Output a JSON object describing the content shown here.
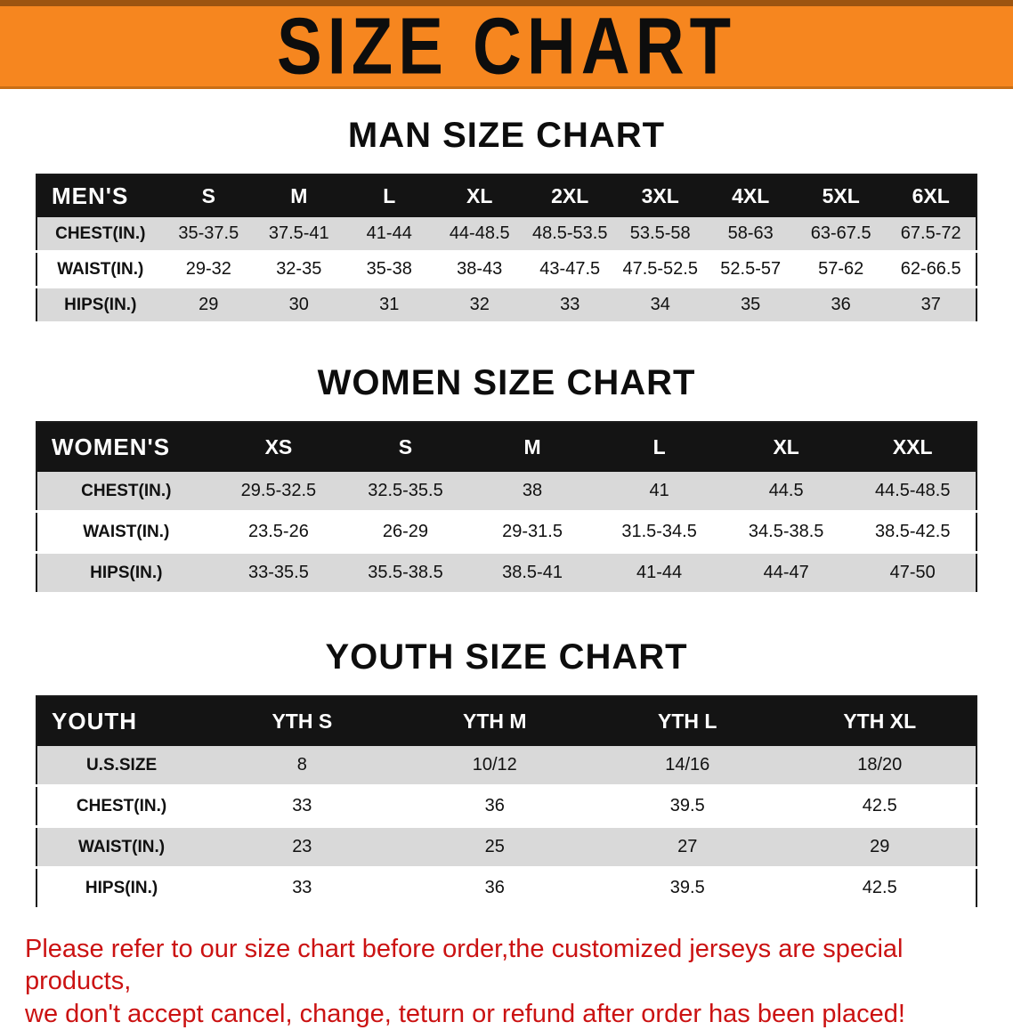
{
  "banner": {
    "title": "SIZE CHART"
  },
  "colors": {
    "banner_bg": "#F6861F",
    "banner_edge": "#9c5410",
    "header_bg": "#141414",
    "stripe": "#d9d9d9",
    "footer_text": "#cb1212"
  },
  "sections": [
    {
      "heading": "MAN SIZE CHART",
      "table": {
        "label": "MEN'S",
        "columns": [
          "S",
          "M",
          "L",
          "XL",
          "2XL",
          "3XL",
          "4XL",
          "5XL",
          "6XL"
        ],
        "rows": [
          {
            "label": "CHEST(IN.)",
            "values": [
              "35-37.5",
              "37.5-41",
              "41-44",
              "44-48.5",
              "48.5-53.5",
              "53.5-58",
              "58-63",
              "63-67.5",
              "67.5-72"
            ]
          },
          {
            "label": "WAIST(IN.)",
            "values": [
              "29-32",
              "32-35",
              "35-38",
              "38-43",
              "43-47.5",
              "47.5-52.5",
              "52.5-57",
              "57-62",
              "62-66.5"
            ]
          },
          {
            "label": "HIPS(IN.)",
            "values": [
              "29",
              "30",
              "31",
              "32",
              "33",
              "34",
              "35",
              "36",
              "37"
            ]
          }
        ]
      }
    },
    {
      "heading": "WOMEN SIZE CHART",
      "table": {
        "label": "WOMEN'S",
        "columns": [
          "XS",
          "S",
          "M",
          "L",
          "XL",
          "XXL"
        ],
        "rows": [
          {
            "label": "CHEST(IN.)",
            "values": [
              "29.5-32.5",
              "32.5-35.5",
              "38",
              "41",
              "44.5",
              "44.5-48.5"
            ]
          },
          {
            "label": "WAIST(IN.)",
            "values": [
              "23.5-26",
              "26-29",
              "29-31.5",
              "31.5-34.5",
              "34.5-38.5",
              "38.5-42.5"
            ]
          },
          {
            "label": "HIPS(IN.)",
            "values": [
              "33-35.5",
              "35.5-38.5",
              "38.5-41",
              "41-44",
              "44-47",
              "47-50"
            ]
          }
        ]
      }
    },
    {
      "heading": "YOUTH SIZE CHART",
      "table": {
        "label": "YOUTH",
        "columns": [
          "YTH S",
          "YTH M",
          "YTH L",
          "YTH XL"
        ],
        "rows": [
          {
            "label": "U.S.SIZE",
            "values": [
              "8",
              "10/12",
              "14/16",
              "18/20"
            ]
          },
          {
            "label": "CHEST(IN.)",
            "values": [
              "33",
              "36",
              "39.5",
              "42.5"
            ]
          },
          {
            "label": "WAIST(IN.)",
            "values": [
              "23",
              "25",
              "27",
              "29"
            ]
          },
          {
            "label": "HIPS(IN.)",
            "values": [
              "33",
              "36",
              "39.5",
              "42.5"
            ]
          }
        ]
      }
    }
  ],
  "footer": {
    "line1": "Please refer to our size chart before order,the customized jerseys are special products,",
    "line2": "we don't accept cancel, change, teturn or refund after order has been placed!"
  }
}
